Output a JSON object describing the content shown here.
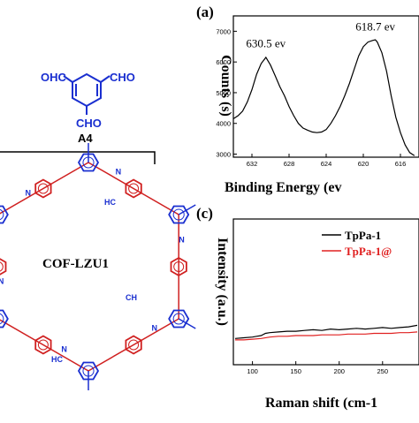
{
  "structure": {
    "monomer_label": "A4",
    "cho_top_left": "OHC",
    "cho_top_right": "CHO",
    "cho_bottom": "CHO",
    "cof_label": "COF-LZU1",
    "n_label": "N",
    "hc_label": "HC",
    "ch_label": "CH",
    "colors": {
      "blue": "#1a2fd0",
      "red": "#d02020"
    }
  },
  "chart_data": [
    {
      "panel_label": "(a)",
      "type": "line",
      "xlabel": "Binding Energy (ev",
      "ylabel": "Counts (s)",
      "xlim": [
        634,
        614
      ],
      "ylim": [
        2900,
        7500
      ],
      "x_ticks": [
        632,
        628,
        624,
        620,
        616
      ],
      "y_ticks": [
        3000,
        4000,
        5000,
        6000,
        7000
      ],
      "x_inverted": true,
      "annotations": [
        {
          "text": "630.5 ev",
          "x": 630.5,
          "y": 6250
        },
        {
          "text": "618.7 ev",
          "x": 618.7,
          "y": 6800
        }
      ],
      "series": [
        {
          "color": "#000000",
          "x": [
            634.0,
            633.5,
            633.0,
            632.5,
            632.0,
            631.5,
            631.0,
            630.5,
            630.0,
            629.5,
            629.0,
            628.5,
            628.0,
            627.5,
            627.0,
            626.5,
            626.0,
            625.5,
            625.0,
            624.5,
            624.0,
            623.5,
            623.0,
            622.5,
            622.0,
            621.5,
            621.0,
            620.5,
            620.0,
            619.5,
            619.0,
            618.7,
            618.5,
            618.0,
            617.5,
            617.0,
            616.5,
            616.0,
            615.5,
            615.0,
            614.5
          ],
          "y": [
            4150,
            4250,
            4400,
            4700,
            5100,
            5600,
            5950,
            6150,
            5900,
            5550,
            5200,
            4900,
            4550,
            4250,
            4000,
            3850,
            3780,
            3720,
            3700,
            3720,
            3800,
            4000,
            4250,
            4550,
            4900,
            5300,
            5750,
            6200,
            6500,
            6650,
            6700,
            6720,
            6650,
            6300,
            5700,
            4900,
            4200,
            3700,
            3300,
            3050,
            2950
          ]
        }
      ]
    },
    {
      "panel_label": "(c)",
      "type": "line",
      "xlabel": "Raman shift (cm-1",
      "ylabel": "Intensity (a.u.)",
      "xlim": [
        78,
        292
      ],
      "ylim": [
        0,
        100
      ],
      "x_ticks": [
        100,
        150,
        200,
        250
      ],
      "legend_position": "top-right",
      "series": [
        {
          "name": "TpPa-1",
          "color": "#000000",
          "x": [
            80,
            90,
            100,
            105,
            110,
            115,
            120,
            130,
            140,
            150,
            160,
            170,
            180,
            190,
            200,
            210,
            220,
            230,
            240,
            250,
            260,
            270,
            280,
            290
          ],
          "y": [
            18,
            18.5,
            19,
            19.5,
            20,
            21.5,
            22,
            22.5,
            23,
            23,
            23.5,
            24,
            23.5,
            24.5,
            24,
            24.5,
            25,
            24.5,
            25,
            25.5,
            25,
            25.5,
            26,
            27
          ]
        },
        {
          "name": "TpPa-1@",
          "color": "#e02020",
          "x": [
            80,
            90,
            100,
            110,
            120,
            130,
            140,
            150,
            160,
            170,
            180,
            190,
            200,
            210,
            220,
            230,
            240,
            250,
            260,
            270,
            280,
            290
          ],
          "y": [
            17,
            17,
            17.5,
            18,
            19,
            19.5,
            19.5,
            20,
            20,
            20,
            20.5,
            20.5,
            20.5,
            21,
            21,
            21,
            21.5,
            21.5,
            21.5,
            22,
            22,
            22.5
          ]
        }
      ]
    }
  ]
}
